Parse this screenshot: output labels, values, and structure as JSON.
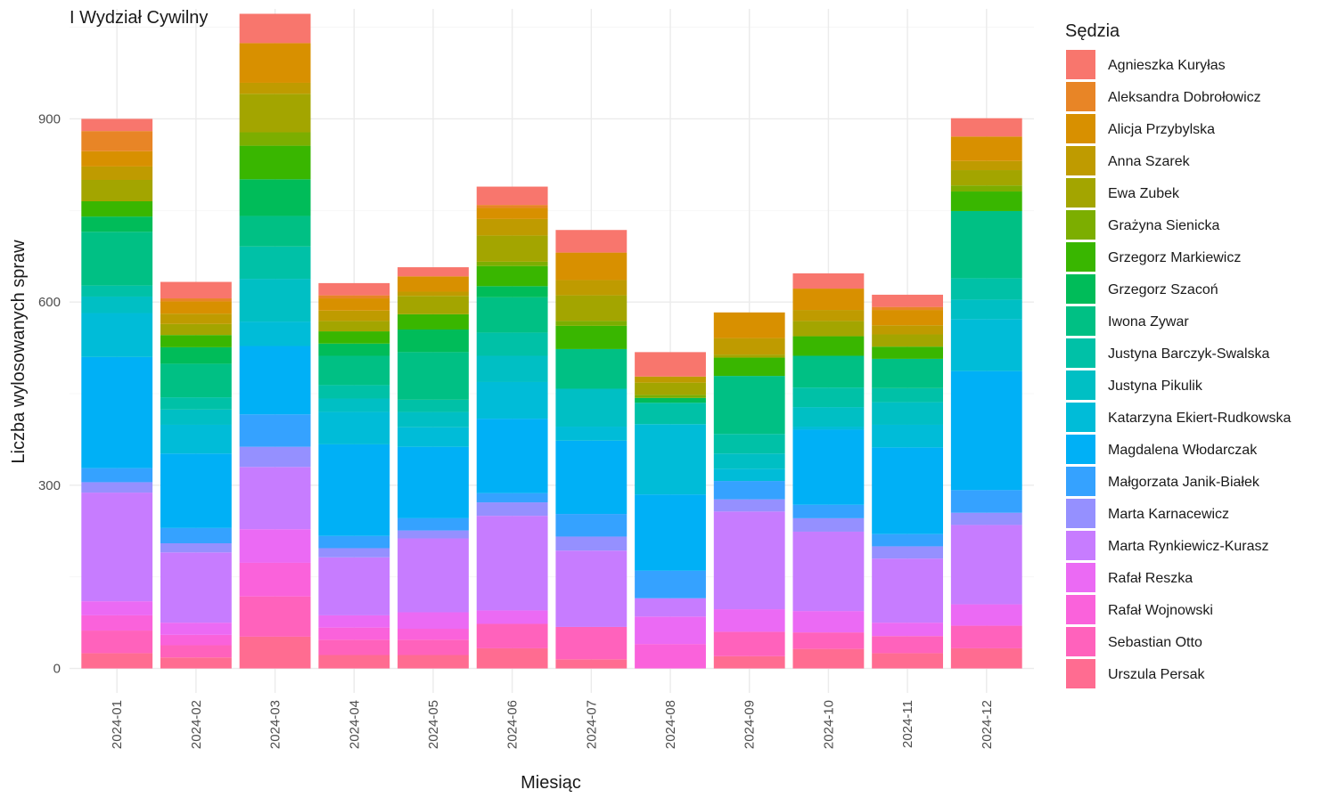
{
  "chart_data": {
    "type": "bar",
    "stacked": true,
    "title": "I Wydział Cywilny",
    "xlabel": "Miesiąc",
    "ylabel": "Liczba wylosowanych spraw",
    "ylim": [
      -40,
      1080
    ],
    "yticks": [
      0,
      300,
      600,
      900
    ],
    "grid": true,
    "legend_title": "Sędzia",
    "legend_position": "right",
    "categories": [
      "2024-01",
      "2024-02",
      "2024-03",
      "2024-04",
      "2024-05",
      "2024-06",
      "2024-07",
      "2024-08",
      "2024-09",
      "2024-10",
      "2024-11",
      "2024-12"
    ],
    "series": [
      {
        "name": "Urszula Persak",
        "color": "#FF6C91",
        "values": [
          25,
          18,
          52,
          22,
          22,
          33,
          15,
          0,
          20,
          32,
          25,
          33
        ]
      },
      {
        "name": "Sebastian Otto",
        "color": "#FF62BC",
        "values": [
          37,
          20,
          66,
          25,
          25,
          40,
          53,
          0,
          40,
          27,
          28,
          37
        ]
      },
      {
        "name": "Rafał Wojnowski",
        "color": "#FA62DB",
        "values": [
          25,
          17,
          55,
          20,
          18,
          0,
          0,
          40,
          0,
          0,
          0,
          0
        ]
      },
      {
        "name": "Rafał Reszka",
        "color": "#EB6AF4",
        "values": [
          23,
          20,
          55,
          20,
          27,
          22,
          0,
          45,
          37,
          35,
          22,
          35
        ]
      },
      {
        "name": "Marta Rynkiewicz-Kurasz",
        "color": "#C77CFF",
        "values": [
          178,
          115,
          102,
          95,
          121,
          155,
          125,
          30,
          160,
          130,
          105,
          130
        ]
      },
      {
        "name": "Marta Karnacewicz",
        "color": "#9590FF",
        "values": [
          17,
          15,
          33,
          15,
          13,
          22,
          23,
          0,
          20,
          22,
          20,
          20
        ]
      },
      {
        "name": "Małgorzata Janik-Białek",
        "color": "#35A2FF",
        "values": [
          23,
          25,
          53,
          20,
          20,
          15,
          37,
          45,
          30,
          22,
          20,
          37
        ]
      },
      {
        "name": "Magdalena Włodarczak",
        "color": "#00B0F6",
        "values": [
          182,
          122,
          112,
          150,
          117,
          122,
          120,
          125,
          0,
          123,
          142,
          195
        ]
      },
      {
        "name": "Katarzyna Ekiert-Rudkowska",
        "color": "#00BCD8",
        "values": [
          72,
          47,
          40,
          53,
          32,
          60,
          23,
          115,
          20,
          5,
          37,
          85
        ]
      },
      {
        "name": "Justyna Pikulik",
        "color": "#00BFC4",
        "values": [
          27,
          25,
          70,
          22,
          25,
          43,
          62,
          0,
          25,
          32,
          37,
          32
        ]
      },
      {
        "name": "Justyna Barczyk-Swalska",
        "color": "#00C1A7",
        "values": [
          18,
          20,
          53,
          22,
          20,
          38,
          0,
          35,
          32,
          32,
          23,
          35
        ]
      },
      {
        "name": "Iwona Zywar",
        "color": "#00C084",
        "values": [
          88,
          55,
          50,
          48,
          78,
          58,
          65,
          0,
          95,
          52,
          48,
          110
        ]
      },
      {
        "name": "Grzegorz Szacoń",
        "color": "#00BC59",
        "values": [
          25,
          27,
          60,
          20,
          37,
          18,
          0,
          8,
          0,
          0,
          0,
          0
        ]
      },
      {
        "name": "Grzegorz Markiewicz",
        "color": "#39B600",
        "values": [
          25,
          20,
          55,
          20,
          25,
          33,
          38,
          0,
          30,
          32,
          20,
          32
        ]
      },
      {
        "name": "Grażyna Sienicka",
        "color": "#7CAE00",
        "values": [
          0,
          0,
          22,
          0,
          0,
          7,
          8,
          5,
          0,
          0,
          0,
          10
        ]
      },
      {
        "name": "Ewa Zubek",
        "color": "#A3A500",
        "values": [
          35,
          18,
          63,
          17,
          30,
          43,
          42,
          20,
          5,
          25,
          20,
          25
        ]
      },
      {
        "name": "Anna Szarek",
        "color": "#BF9B00",
        "values": [
          22,
          17,
          18,
          17,
          7,
          27,
          25,
          10,
          27,
          18,
          15,
          15
        ]
      },
      {
        "name": "Alicja Przybylska",
        "color": "#D89000",
        "values": [
          25,
          20,
          65,
          20,
          25,
          18,
          45,
          0,
          42,
          35,
          25,
          40
        ]
      },
      {
        "name": "Aleksandra Dobrołowicz",
        "color": "#E88526",
        "values": [
          33,
          5,
          0,
          5,
          0,
          5,
          0,
          0,
          0,
          0,
          5,
          0
        ]
      },
      {
        "name": "Agnieszka Kuryłas",
        "color": "#F8766D",
        "values": [
          20,
          27,
          48,
          20,
          15,
          30,
          37,
          40,
          0,
          25,
          20,
          30
        ]
      }
    ]
  }
}
